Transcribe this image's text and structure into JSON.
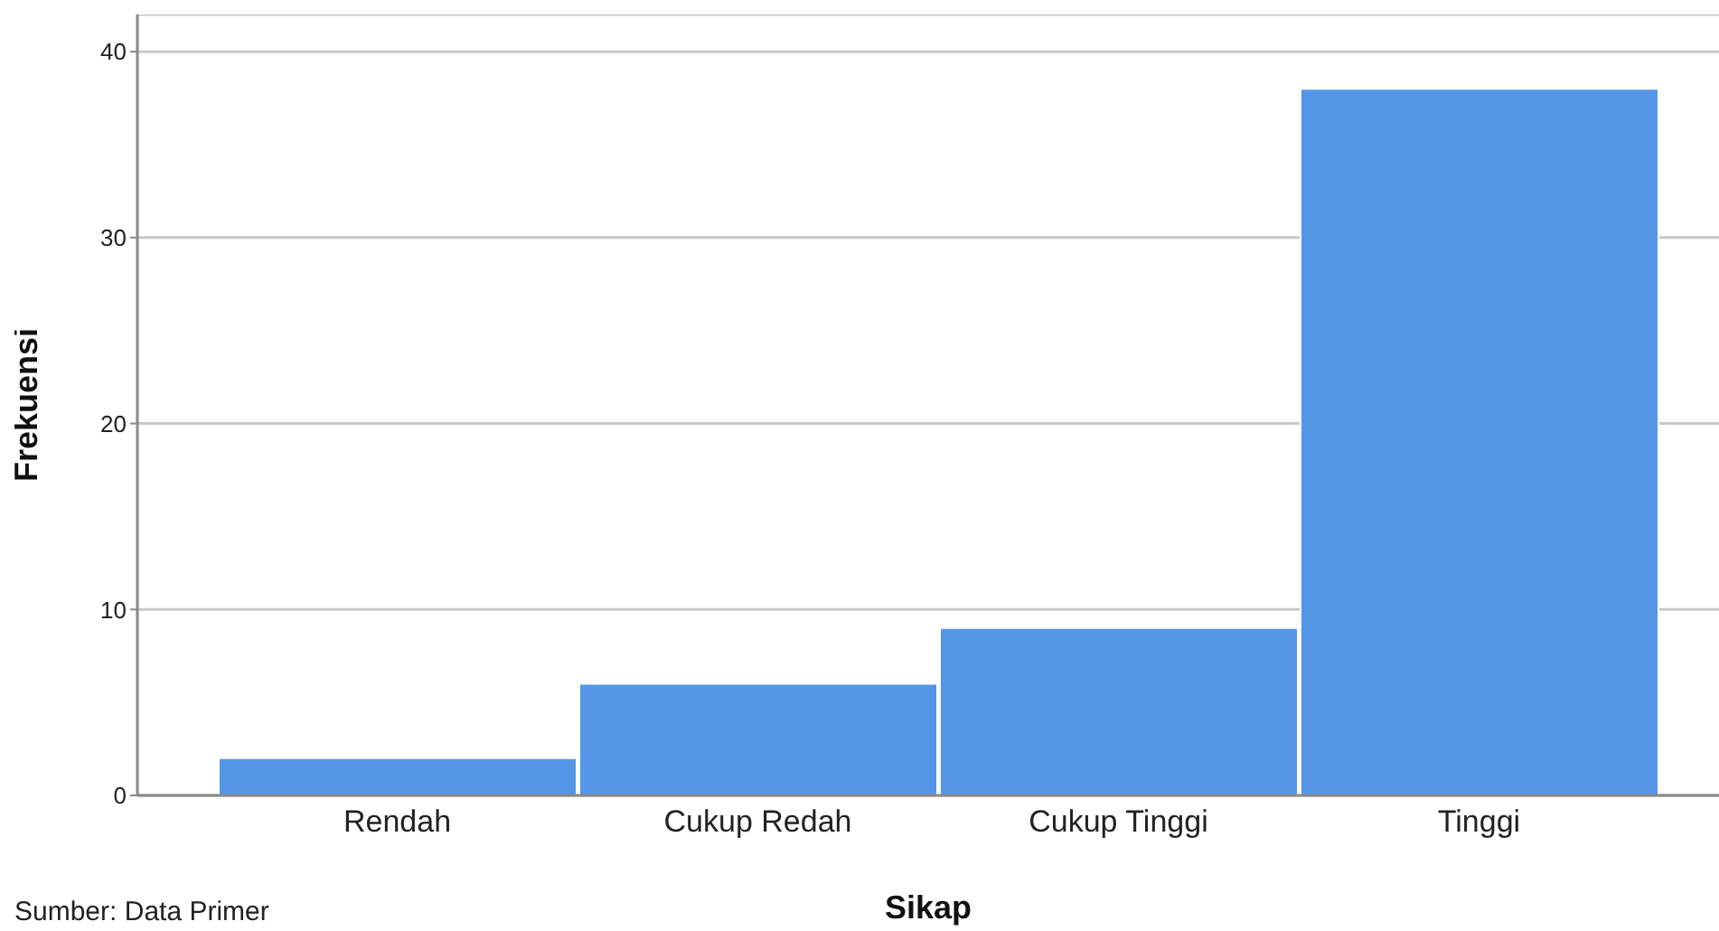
{
  "chart_data": {
    "type": "bar",
    "xlabel": "Sikap",
    "ylabel": "Frekuensi",
    "categories": [
      "Rendah",
      "Cukup Redah",
      "Cukup Tinggi",
      "Tinggi"
    ],
    "values": [
      2,
      6,
      9,
      38
    ],
    "color": "#5596e6",
    "ylim": [
      0,
      42
    ],
    "yticks": [
      0,
      10,
      20,
      30,
      40
    ],
    "grid": "y",
    "annotations": [
      "Sumber: Data Primer"
    ]
  }
}
